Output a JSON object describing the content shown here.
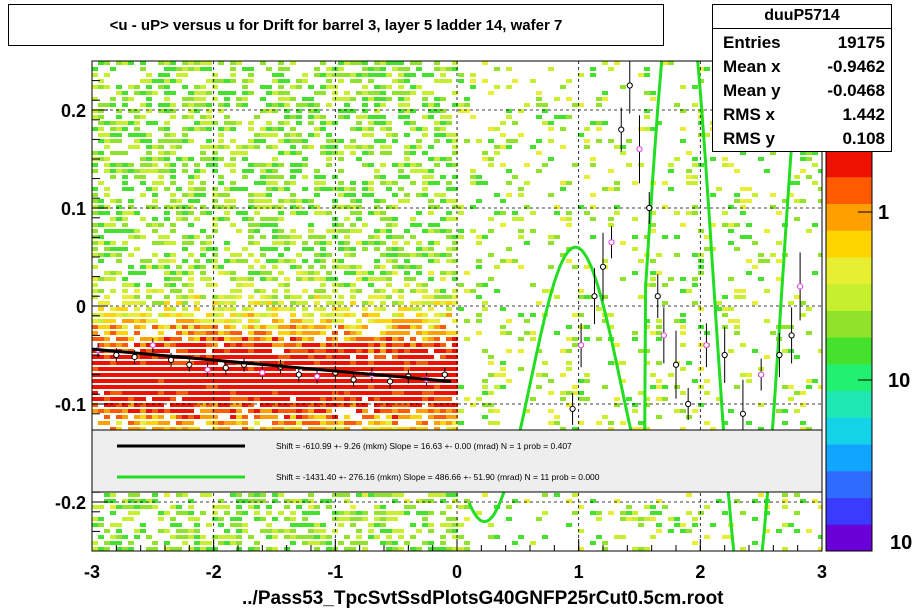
{
  "title": "<u - uP>       versus   u for Drift for barrel 3, layer 5 ladder 14, wafer 7",
  "footer": "../Pass53_TpcSvtSsdPlotsG40GNFP25rCut0.5cm.root",
  "stats": {
    "name": "duuP5714",
    "rows": [
      {
        "label": "Entries",
        "value": "19175"
      },
      {
        "label": "Mean x",
        "value": "-0.9462"
      },
      {
        "label": "Mean y",
        "value": "-0.0468"
      },
      {
        "label": "RMS x",
        "value": "1.442"
      },
      {
        "label": "RMS y",
        "value": "0.108"
      }
    ]
  },
  "chart_data": {
    "type": "heatmap",
    "title": "<u - uP>       versus   u for Drift for barrel 3, layer 5 ladder 14, wafer 7",
    "xlim": [
      -3,
      3
    ],
    "ylim": [
      -0.25,
      0.25
    ],
    "x_ticks": [
      -3,
      -2,
      -1,
      0,
      1,
      2,
      3
    ],
    "y_ticks": [
      -0.2,
      -0.1,
      0,
      0.1,
      0.2
    ],
    "x_tick_labels": [
      "-3",
      "-2",
      "-1",
      "0",
      "1",
      "2",
      "3"
    ],
    "y_tick_labels": [
      "-0.2",
      "-0.1",
      "0",
      "0.1",
      "0.2"
    ],
    "z_scale": "log",
    "z_tick_labels": [
      "1",
      "10",
      "10"
    ],
    "grid": true,
    "palette": [
      "#6a00d8",
      "#3b3bff",
      "#2f6bff",
      "#12a5ff",
      "#14d2e8",
      "#1fe8b4",
      "#22f070",
      "#44e22c",
      "#90e22a",
      "#c6f02e",
      "#e8ee32",
      "#ffd400",
      "#ffa000",
      "#ff5a00",
      "#ee1100"
    ],
    "fits": [
      {
        "color": "#000000",
        "label": "Shift =  -610.99 +- 9.26 (mkm) Slope =    16.63 +- 0.00 (mrad)  N = 1 prob = 0.407",
        "x_range": [
          -3,
          -0.05
        ],
        "y_range": [
          -0.044,
          -0.077
        ]
      },
      {
        "color": "#22dd22",
        "label": "Shift = -1431.40 +- 276.16 (mkm) Slope =   486.66 +- 51.90 (mrad)  N = 11 prob = 0.000"
      }
    ],
    "profile_points": [
      {
        "x": -2.95,
        "y": -0.045
      },
      {
        "x": -2.8,
        "y": -0.05
      },
      {
        "x": -2.65,
        "y": -0.052
      },
      {
        "x": -2.5,
        "y": -0.04
      },
      {
        "x": -2.35,
        "y": -0.055
      },
      {
        "x": -2.2,
        "y": -0.06
      },
      {
        "x": -2.05,
        "y": -0.065
      },
      {
        "x": -1.9,
        "y": -0.063
      },
      {
        "x": -1.75,
        "y": -0.06
      },
      {
        "x": -1.6,
        "y": -0.068
      },
      {
        "x": -1.45,
        "y": -0.062
      },
      {
        "x": -1.3,
        "y": -0.07
      },
      {
        "x": -1.15,
        "y": -0.072
      },
      {
        "x": -1.0,
        "y": -0.068
      },
      {
        "x": -0.85,
        "y": -0.075
      },
      {
        "x": -0.7,
        "y": -0.07
      },
      {
        "x": -0.55,
        "y": -0.077
      },
      {
        "x": -0.4,
        "y": -0.072
      },
      {
        "x": -0.25,
        "y": -0.075
      },
      {
        "x": -0.1,
        "y": -0.07
      },
      {
        "x": 0.95,
        "y": -0.105
      },
      {
        "x": 1.02,
        "y": -0.04
      },
      {
        "x": 1.13,
        "y": 0.01
      },
      {
        "x": 1.2,
        "y": 0.04
      },
      {
        "x": 1.27,
        "y": 0.065
      },
      {
        "x": 1.35,
        "y": 0.18
      },
      {
        "x": 1.42,
        "y": 0.225
      },
      {
        "x": 1.5,
        "y": 0.16
      },
      {
        "x": 1.58,
        "y": 0.1
      },
      {
        "x": 1.65,
        "y": 0.01
      },
      {
        "x": 1.7,
        "y": -0.03
      },
      {
        "x": 1.8,
        "y": -0.06
      },
      {
        "x": 1.9,
        "y": -0.1
      },
      {
        "x": 2.05,
        "y": -0.04
      },
      {
        "x": 2.2,
        "y": -0.05
      },
      {
        "x": 2.35,
        "y": -0.11
      },
      {
        "x": 2.5,
        "y": -0.07
      },
      {
        "x": 2.65,
        "y": -0.05
      },
      {
        "x": 2.75,
        "y": -0.03
      },
      {
        "x": 2.82,
        "y": 0.02
      }
    ]
  }
}
